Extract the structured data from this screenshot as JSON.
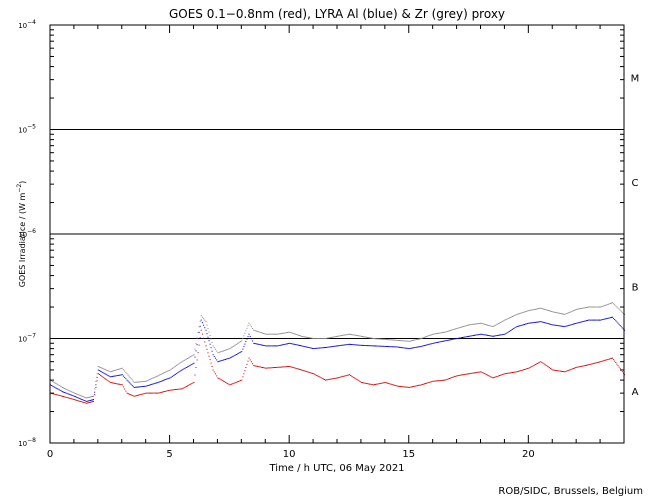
{
  "chart_data": {
    "type": "scatter",
    "title": "GOES 0.1−0.8nm (red), LYRA Al (blue) & Zr (grey) proxy",
    "xlabel": "Time / h UTC, 06 May 2021",
    "ylabel": "GOES Irradiance / (W m",
    "ylabel_sup": "−2",
    "ylabel_close": ")",
    "xlim": [
      0,
      24
    ],
    "ylim": [
      1e-08,
      0.0001
    ],
    "yscale": "log",
    "x_ticks": [
      {
        "value": 0,
        "label": "0"
      },
      {
        "value": 5,
        "label": "5"
      },
      {
        "value": 10,
        "label": "10"
      },
      {
        "value": 15,
        "label": "15"
      },
      {
        "value": 20,
        "label": "20"
      }
    ],
    "y_ticks": [
      {
        "value": 1e-08,
        "base": "10",
        "exp": "−8"
      },
      {
        "value": 1e-07,
        "base": "10",
        "exp": "−7"
      },
      {
        "value": 1e-06,
        "base": "10",
        "exp": "−6"
      },
      {
        "value": 1e-05,
        "base": "10",
        "exp": "−5"
      },
      {
        "value": 0.0001,
        "base": "10",
        "exp": "−4"
      }
    ],
    "flare_thresholds": [
      1e-07,
      1e-06,
      1e-05
    ],
    "flare_classes": [
      {
        "label": "A",
        "value": 3.16e-08
      },
      {
        "label": "B",
        "value": 3.16e-07
      },
      {
        "label": "C",
        "value": 3.16e-06
      },
      {
        "label": "M",
        "value": 3.16e-05
      }
    ],
    "series": [
      {
        "color": "#cc0000",
        "x": [
          0,
          0.5,
          1,
          1.5,
          1.8,
          2.0,
          2.5,
          3.0,
          3.2,
          3.5,
          4.0,
          4.5,
          5.0,
          5.5,
          6.0,
          6.3,
          6.5,
          6.8,
          7.0,
          7.5,
          8.0,
          8.3,
          8.5,
          9.0,
          9.5,
          10.0,
          10.5,
          11.0,
          11.5,
          12.0,
          12.5,
          13.0,
          13.5,
          14.0,
          14.5,
          15.0,
          15.5,
          16.0,
          16.5,
          17.0,
          17.5,
          18.0,
          18.5,
          19.0,
          19.5,
          20.0,
          20.5,
          21.0,
          21.5,
          22.0,
          22.5,
          23.0,
          23.5,
          24.0
        ],
        "y": [
          3e-08,
          2.8e-08,
          2.6e-08,
          2.4e-08,
          2.5e-08,
          4.6e-08,
          3.8e-08,
          3.6e-08,
          3e-08,
          2.8e-08,
          3e-08,
          3e-08,
          3.2e-08,
          3.3e-08,
          3.8e-08,
          1.2e-07,
          8.5e-08,
          5e-08,
          4.2e-08,
          3.6e-08,
          4e-08,
          6.5e-08,
          5.5e-08,
          5.2e-08,
          5.3e-08,
          5.4e-08,
          5e-08,
          4.6e-08,
          4e-08,
          4.2e-08,
          4.5e-08,
          3.8e-08,
          3.6e-08,
          3.8e-08,
          3.5e-08,
          3.4e-08,
          3.6e-08,
          3.9e-08,
          4e-08,
          4.4e-08,
          4.6e-08,
          4.8e-08,
          4.2e-08,
          4.6e-08,
          4.8e-08,
          5.2e-08,
          6e-08,
          5e-08,
          4.8e-08,
          5.3e-08,
          5.6e-08,
          6e-08,
          6.5e-08,
          4.5e-08
        ]
      },
      {
        "color": "#0000cc",
        "x": [
          0,
          0.5,
          1,
          1.5,
          1.8,
          2.0,
          2.5,
          3.0,
          3.2,
          3.5,
          4.0,
          4.5,
          5.0,
          5.5,
          6.0,
          6.3,
          6.5,
          6.8,
          7.0,
          7.5,
          8.0,
          8.3,
          8.5,
          9.0,
          9.5,
          10.0,
          10.5,
          11.0,
          11.5,
          12.0,
          12.5,
          13.0,
          13.5,
          14.0,
          14.5,
          15.0,
          15.5,
          16.0,
          16.5,
          17.0,
          17.5,
          18.0,
          18.5,
          19.0,
          19.5,
          20.0,
          20.5,
          21.0,
          21.5,
          22.0,
          22.5,
          23.0,
          23.5,
          24.0
        ],
        "y": [
          3.6e-08,
          3.1e-08,
          2.8e-08,
          2.5e-08,
          2.6e-08,
          5e-08,
          4.3e-08,
          4.5e-08,
          4e-08,
          3.4e-08,
          3.5e-08,
          3.8e-08,
          4.2e-08,
          5e-08,
          5.8e-08,
          1.5e-07,
          1.2e-07,
          7e-08,
          6e-08,
          6.5e-08,
          7.5e-08,
          1.1e-07,
          9e-08,
          8.5e-08,
          8.5e-08,
          9e-08,
          8.5e-08,
          8e-08,
          8.2e-08,
          8.5e-08,
          8.8e-08,
          8.6e-08,
          8.5e-08,
          8.4e-08,
          8.3e-08,
          8e-08,
          8.4e-08,
          9e-08,
          9.5e-08,
          1e-07,
          1.05e-07,
          1.1e-07,
          1.05e-07,
          1.1e-07,
          1.3e-07,
          1.4e-07,
          1.45e-07,
          1.35e-07,
          1.3e-07,
          1.4e-07,
          1.5e-07,
          1.5e-07,
          1.6e-07,
          1.2e-07
        ]
      },
      {
        "color": "#888888",
        "x": [
          0,
          0.5,
          1,
          1.5,
          1.8,
          2.0,
          2.5,
          3.0,
          3.2,
          3.5,
          4.0,
          4.5,
          5.0,
          5.5,
          6.0,
          6.3,
          6.5,
          6.8,
          7.0,
          7.5,
          8.0,
          8.3,
          8.5,
          9.0,
          9.5,
          10.0,
          10.5,
          11.0,
          11.5,
          12.0,
          12.5,
          13.0,
          13.5,
          14.0,
          14.5,
          15.0,
          15.5,
          16.0,
          16.5,
          17.0,
          17.5,
          18.0,
          18.5,
          19.0,
          19.5,
          20.0,
          20.5,
          21.0,
          21.5,
          22.0,
          22.5,
          23.0,
          23.5,
          24.0
        ],
        "y": [
          4e-08,
          3.4e-08,
          3e-08,
          2.7e-08,
          2.8e-08,
          5.4e-08,
          4.8e-08,
          5.2e-08,
          4.6e-08,
          3.8e-08,
          3.9e-08,
          4.4e-08,
          5e-08,
          6e-08,
          7e-08,
          1.65e-07,
          1.45e-07,
          8.5e-08,
          7.3e-08,
          8e-08,
          9.5e-08,
          1.4e-07,
          1.2e-07,
          1.1e-07,
          1.1e-07,
          1.15e-07,
          1.05e-07,
          1e-07,
          1e-07,
          1.05e-07,
          1.1e-07,
          1.05e-07,
          1e-07,
          9.8e-08,
          9.6e-08,
          9.4e-08,
          1e-07,
          1.1e-07,
          1.15e-07,
          1.25e-07,
          1.35e-07,
          1.4e-07,
          1.3e-07,
          1.5e-07,
          1.7e-07,
          1.85e-07,
          1.95e-07,
          1.8e-07,
          1.7e-07,
          1.9e-07,
          2e-07,
          2e-07,
          2.2e-07,
          1.7e-07
        ]
      }
    ]
  },
  "credit": "ROB/SIDC, Brussels, Belgium"
}
